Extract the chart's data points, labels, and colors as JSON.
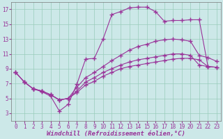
{
  "background_color": "#cce8e8",
  "grid_color": "#99ccbb",
  "line_color": "#993399",
  "marker_style": "+",
  "marker_size": 4,
  "marker_ew": 1.0,
  "line_width": 0.8,
  "xlabel": "Windchill (Refroidissement éolien,°C)",
  "xlabel_fontsize": 6.5,
  "tick_fontsize": 5.5,
  "xlim": [
    -0.5,
    23.5
  ],
  "ylim": [
    2,
    18
  ],
  "yticks": [
    3,
    5,
    7,
    9,
    11,
    13,
    15,
    17
  ],
  "xticks": [
    0,
    1,
    2,
    3,
    4,
    5,
    6,
    7,
    8,
    9,
    10,
    11,
    12,
    13,
    14,
    15,
    16,
    17,
    18,
    19,
    20,
    21,
    22,
    23
  ],
  "line1_x": [
    0,
    1,
    2,
    3,
    4,
    5,
    6,
    7,
    8,
    9,
    10,
    11,
    12,
    13,
    14,
    15,
    16,
    17,
    18,
    19,
    20,
    21,
    22
  ],
  "line1_y": [
    8.5,
    7.2,
    6.3,
    5.9,
    5.3,
    3.3,
    4.2,
    6.9,
    10.3,
    10.4,
    13.0,
    16.3,
    16.7,
    17.2,
    17.3,
    17.3,
    16.7,
    15.4,
    15.5,
    15.5,
    15.6,
    15.6,
    9.3
  ],
  "line2_x": [
    0,
    1,
    2,
    3,
    4,
    5,
    6,
    7,
    8,
    9,
    10,
    11,
    12,
    13,
    14,
    15,
    16,
    17,
    18,
    19,
    20,
    21,
    22,
    23
  ],
  "line2_y": [
    8.5,
    7.2,
    6.3,
    6.0,
    5.5,
    4.8,
    5.0,
    6.5,
    7.8,
    8.5,
    9.3,
    10.1,
    10.8,
    11.5,
    12.0,
    12.3,
    12.7,
    12.9,
    13.0,
    12.9,
    12.7,
    10.8,
    10.5,
    10.0
  ],
  "line3_x": [
    0,
    1,
    2,
    3,
    4,
    5,
    6,
    7,
    8,
    9,
    10,
    11,
    12,
    13,
    14,
    15,
    16,
    17,
    18,
    19,
    20,
    21,
    22,
    23
  ],
  "line3_y": [
    8.5,
    7.2,
    6.3,
    6.0,
    5.5,
    4.8,
    5.0,
    6.0,
    7.2,
    7.8,
    8.5,
    9.0,
    9.5,
    9.9,
    10.2,
    10.4,
    10.6,
    10.8,
    11.0,
    11.0,
    10.8,
    9.5,
    9.3,
    9.2
  ],
  "line4_x": [
    2,
    3,
    4,
    5,
    6,
    7,
    8,
    9,
    10,
    11,
    12,
    13,
    14,
    15,
    16,
    17,
    18,
    19,
    20,
    21,
    22,
    23
  ],
  "line4_y": [
    6.3,
    6.0,
    5.5,
    4.8,
    5.0,
    5.8,
    6.8,
    7.3,
    8.0,
    8.5,
    9.0,
    9.3,
    9.5,
    9.7,
    9.9,
    10.1,
    10.3,
    10.4,
    10.4,
    10.2,
    9.3,
    9.2
  ]
}
